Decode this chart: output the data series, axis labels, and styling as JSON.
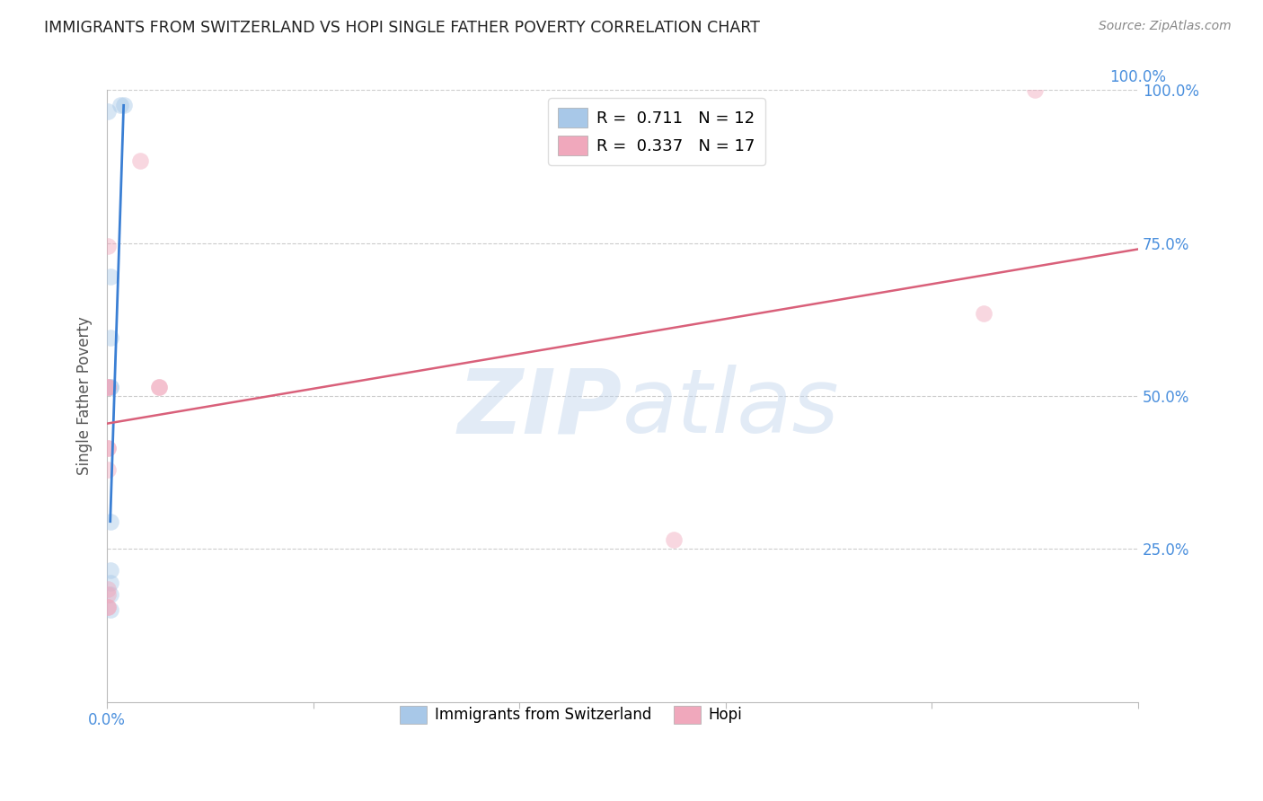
{
  "title": "IMMIGRANTS FROM SWITZERLAND VS HOPI SINGLE FATHER POVERTY CORRELATION CHART",
  "source": "Source: ZipAtlas.com",
  "ylabel": "Single Father Poverty",
  "xlim": [
    0.0,
    1.0
  ],
  "ylim": [
    0.0,
    1.0
  ],
  "ytick_vals": [
    0.25,
    0.5,
    0.75,
    1.0
  ],
  "ytick_labels": [
    "25.0%",
    "50.0%",
    "75.0%",
    "100.0%"
  ],
  "blue_scatter_x": [
    0.001,
    0.013,
    0.016,
    0.003,
    0.003,
    0.003,
    0.003,
    0.003,
    0.003,
    0.003,
    0.003,
    0.003
  ],
  "blue_scatter_y": [
    0.965,
    0.975,
    0.975,
    0.695,
    0.595,
    0.515,
    0.515,
    0.295,
    0.215,
    0.195,
    0.175,
    0.15
  ],
  "pink_scatter_x": [
    0.032,
    0.001,
    0.001,
    0.001,
    0.001,
    0.05,
    0.05,
    0.001,
    0.001,
    0.001,
    0.55,
    0.9,
    0.85,
    0.001,
    0.001,
    0.001,
    0.001
  ],
  "pink_scatter_y": [
    0.885,
    0.745,
    0.515,
    0.515,
    0.515,
    0.515,
    0.515,
    0.415,
    0.415,
    0.38,
    0.265,
    1.0,
    0.635,
    0.185,
    0.175,
    0.155,
    0.155
  ],
  "blue_line_x": [
    0.003,
    0.016
  ],
  "blue_line_y": [
    0.295,
    0.975
  ],
  "pink_line_x": [
    0.0,
    1.0
  ],
  "pink_line_y": [
    0.455,
    0.74
  ],
  "scatter_size": 180,
  "scatter_alpha": 0.45,
  "line_color_blue": "#3a7fd4",
  "line_color_pink": "#d9607a",
  "scatter_color_blue": "#a8c8e8",
  "scatter_color_pink": "#f0a8bc",
  "bg_color": "#ffffff",
  "grid_color": "#cccccc",
  "title_color": "#222222",
  "axis_label_color": "#555555",
  "tick_label_color": "#4a8fdd",
  "source_color": "#888888",
  "legend1_label1": "R =  0.711   N = 12",
  "legend1_label2": "R =  0.337   N = 17",
  "legend2_label1": "Immigrants from Switzerland",
  "legend2_label2": "Hopi"
}
